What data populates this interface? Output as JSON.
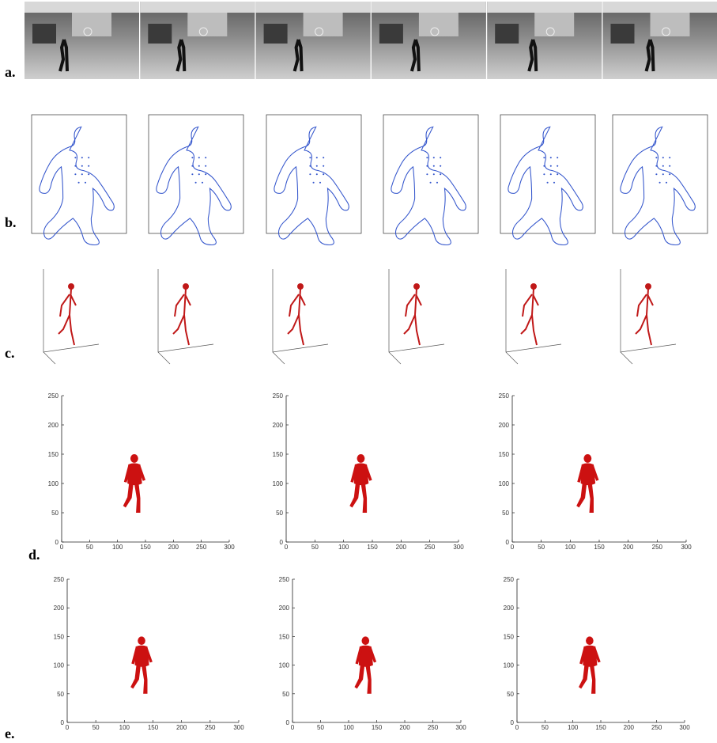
{
  "panels": [
    {
      "label": "a."
    },
    {
      "label": "b."
    },
    {
      "label": "c."
    },
    {
      "label": "d."
    },
    {
      "label": "e."
    }
  ],
  "plots": {
    "xlim": [
      0,
      300
    ],
    "ylim": [
      0,
      250
    ],
    "xticks": [
      0,
      50,
      100,
      150,
      200,
      250,
      300
    ],
    "yticks": [
      0,
      50,
      100,
      150,
      200,
      250
    ]
  }
}
